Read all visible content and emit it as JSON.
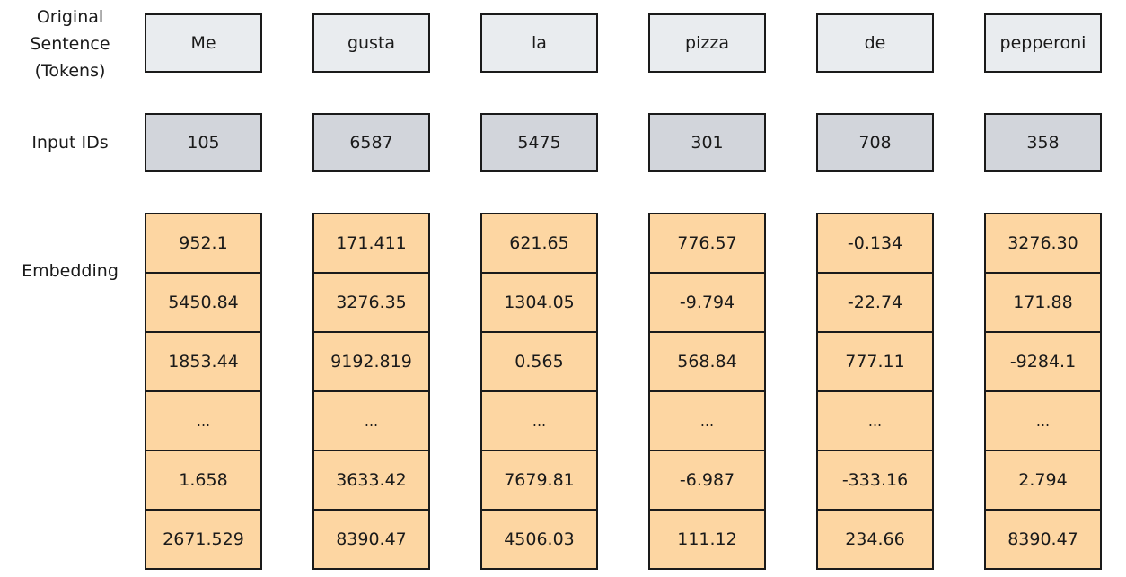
{
  "row_labels": {
    "tokens": "Original Sentence (Tokens)",
    "tokens_lines": [
      "Original",
      "Sentence",
      "(Tokens)"
    ],
    "input_ids": "Input IDs",
    "embedding": "Embedding"
  },
  "columns": [
    {
      "token": "Me",
      "input_id": "105",
      "embedding": [
        "952.1",
        "5450.84",
        "1853.44",
        "...",
        "1.658",
        "2671.529"
      ]
    },
    {
      "token": "gusta",
      "input_id": "6587",
      "embedding": [
        "171.411",
        "3276.35",
        "9192.819",
        "...",
        "3633.42",
        "8390.47"
      ]
    },
    {
      "token": "la",
      "input_id": "5475",
      "embedding": [
        "621.65",
        "1304.05",
        "0.565",
        "...",
        "7679.81",
        "4506.03"
      ]
    },
    {
      "token": "pizza",
      "input_id": "301",
      "embedding": [
        "776.57",
        "-9.794",
        "568.84",
        "...",
        "-6.987",
        "111.12"
      ]
    },
    {
      "token": "de",
      "input_id": "708",
      "embedding": [
        "-0.134",
        "-22.74",
        "777.11",
        "...",
        "-333.16",
        "234.66"
      ]
    },
    {
      "token": "pepperoni",
      "input_id": "358",
      "embedding": [
        "3276.30",
        "171.88",
        "-9284.1",
        "...",
        "2.794",
        "8390.47"
      ]
    }
  ],
  "colors": {
    "token_fill": "#e9ecef",
    "input_id_fill": "#d2d5db",
    "embedding_fill": "#fdd6a2",
    "border": "#1a1a1a"
  }
}
